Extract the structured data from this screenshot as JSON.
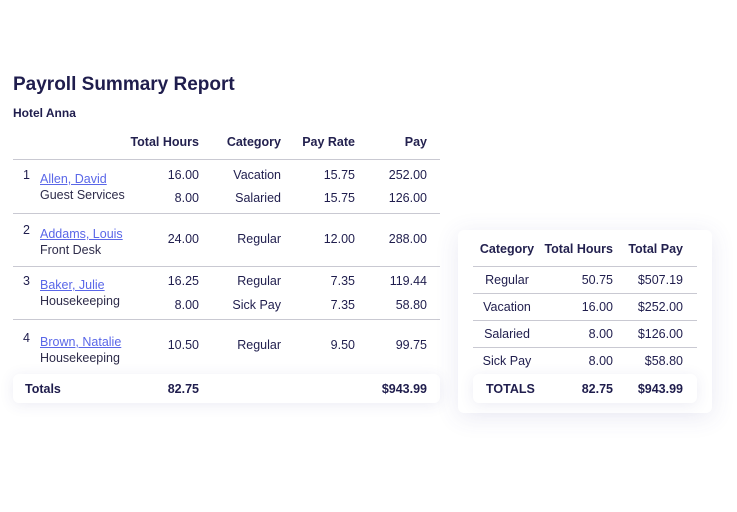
{
  "title": "Payroll Summary Report",
  "subtitle": "Hotel Anna",
  "detail": {
    "headers": {
      "hours": "Total Hours",
      "category": "Category",
      "rate": "Pay Rate",
      "pay": "Pay"
    },
    "employees": [
      {
        "num": "1",
        "name": "Allen, David",
        "dept": "Guest Services",
        "lines": [
          {
            "hours": "16.00",
            "category": "Vacation",
            "rate": "15.75",
            "pay": "252.00"
          },
          {
            "hours": "8.00",
            "category": "Salaried",
            "rate": "15.75",
            "pay": "126.00"
          }
        ]
      },
      {
        "num": "2",
        "name": "Addams, Louis",
        "dept": "Front Desk",
        "lines": [
          {
            "hours": "24.00",
            "category": "Regular",
            "rate": "12.00",
            "pay": "288.00"
          }
        ]
      },
      {
        "num": "3",
        "name": "Baker, Julie",
        "dept": "Housekeeping",
        "lines": [
          {
            "hours": "16.25",
            "category": "Regular",
            "rate": "7.35",
            "pay": "119.44"
          },
          {
            "hours": "8.00",
            "category": "Sick Pay",
            "rate": "7.35",
            "pay": "58.80"
          }
        ]
      },
      {
        "num": "4",
        "name": "Brown, Natalie",
        "dept": "Housekeeping",
        "lines": [
          {
            "hours": "10.50",
            "category": "Regular",
            "rate": "9.50",
            "pay": "99.75"
          }
        ]
      }
    ],
    "totals": {
      "label": "Totals",
      "hours": "82.75",
      "pay": "$943.99"
    }
  },
  "summary": {
    "headers": {
      "category": "Category",
      "hours": "Total Hours",
      "pay": "Total Pay"
    },
    "rows": [
      {
        "category": "Regular",
        "hours": "50.75",
        "pay": "$507.19"
      },
      {
        "category": "Vacation",
        "hours": "16.00",
        "pay": "$252.00"
      },
      {
        "category": "Salaried",
        "hours": "8.00",
        "pay": "$126.00"
      },
      {
        "category": "Sick Pay",
        "hours": "8.00",
        "pay": "$58.80"
      }
    ],
    "totals": {
      "label": "TOTALS",
      "hours": "82.75",
      "pay": "$943.99"
    }
  }
}
